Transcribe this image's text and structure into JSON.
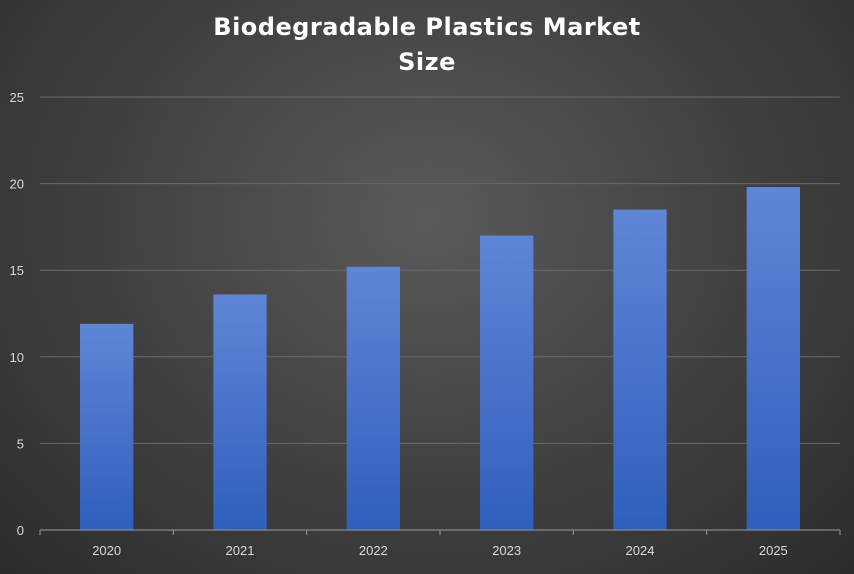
{
  "chart_data": {
    "type": "bar",
    "title_lines": [
      "Biodegradable  Plastics  Market",
      "Size"
    ],
    "categories": [
      "2020",
      "2021",
      "2022",
      "2023",
      "2024",
      "2025"
    ],
    "values": [
      11.9,
      13.6,
      15.2,
      17.0,
      18.5,
      19.8
    ],
    "ylim": [
      0,
      25
    ],
    "yticks": [
      "0",
      "5",
      "10",
      "15",
      "20",
      "25"
    ],
    "grid": true,
    "colors": {
      "bar_top": "#5f86d6",
      "bar_bottom": "#2f5fbd",
      "grid": "#6a6a6a",
      "axis": "#9a9a9a"
    }
  }
}
